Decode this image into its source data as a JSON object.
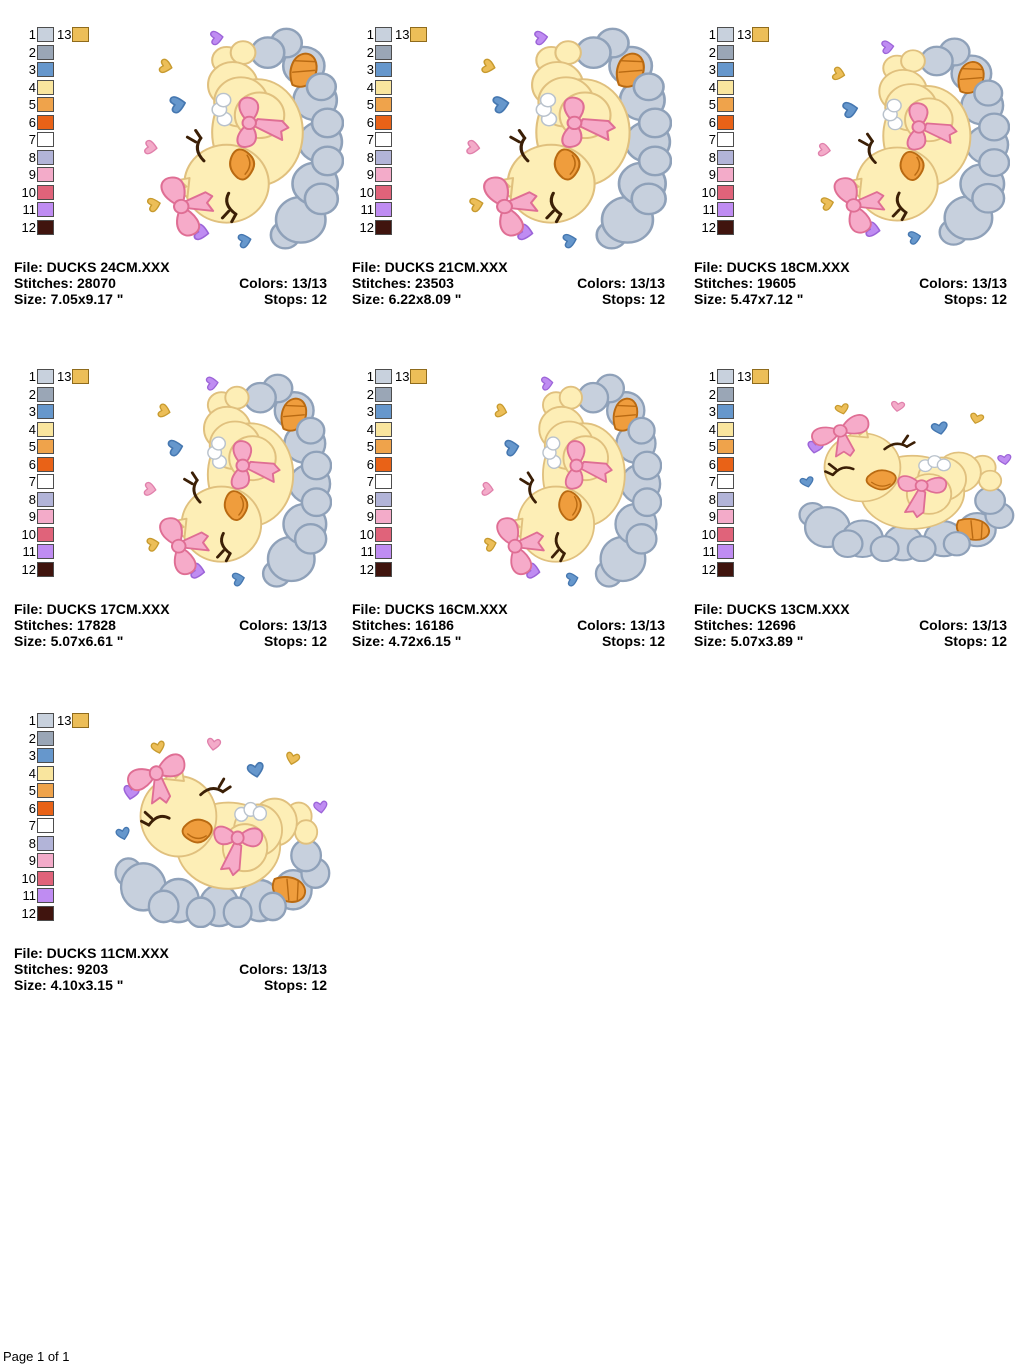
{
  "page": {
    "footer_label": "Page 1 of 1"
  },
  "labels": {
    "file": "File:",
    "stitches": "Stitches:",
    "size": "Size:",
    "colors": "Colors:",
    "stops": "Stops:"
  },
  "palette": {
    "numbers": [
      "1",
      "2",
      "3",
      "4",
      "5",
      "6",
      "7",
      "8",
      "9",
      "10",
      "11",
      "12"
    ],
    "extra_number": "13",
    "colors": {
      "1": "#c8d1dd",
      "2": "#9aa6b6",
      "3": "#6697cc",
      "4": "#f9e59e",
      "5": "#efa34b",
      "6": "#e96217",
      "7": "#ffffff",
      "8": "#b2b4d8",
      "9": "#f3abc9",
      "10": "#e0637a",
      "11": "#bf8cf2",
      "12": "#40140e",
      "13": "#ecbe58"
    }
  },
  "designs": [
    {
      "file": "DUCKS 24CM.XXX",
      "stitches": "28070",
      "size": "7.05x9.17 \"",
      "colors": "13/13",
      "stops": "12"
    },
    {
      "file": "DUCKS 21CM.XXX",
      "stitches": "23503",
      "size": "6.22x8.09 \"",
      "colors": "13/13",
      "stops": "12"
    },
    {
      "file": "DUCKS 18CM.XXX",
      "stitches": "19605",
      "size": "5.47x7.12 \"",
      "colors": "13/13",
      "stops": "12"
    },
    {
      "file": "DUCKS 17CM.XXX",
      "stitches": "17828",
      "size": "5.07x6.61 \"",
      "colors": "13/13",
      "stops": "12"
    },
    {
      "file": "DUCKS 16CM.XXX",
      "stitches": "16186",
      "size": "4.72x6.15 \"",
      "colors": "13/13",
      "stops": "12"
    },
    {
      "file": "DUCKS 13CM.XXX",
      "stitches": "12696",
      "size": "5.07x3.89 \"",
      "colors": "13/13",
      "stops": "12"
    },
    {
      "file": "DUCKS 11CM.XXX",
      "stitches": "9203",
      "size": "4.10x3.15 \"",
      "colors": "13/13",
      "stops": "12"
    }
  ],
  "artwork": {
    "description": "sleeping duckling with pink bows resting on a cloud, surrounded by hearts",
    "colors": {
      "cloud": "#c7d0dd",
      "cloud_outline": "#8fa1b9",
      "duck_body": "#fdeeb6",
      "duck_outline": "#e0c07e",
      "beak": "#ef9d3d",
      "beak_outline": "#b96a12",
      "bow": "#f6abc9",
      "bow_outline": "#df6e94",
      "eye": "#3b1f06",
      "ruffle": "#ffffff",
      "ruffle_outline": "#b9c2cc",
      "heart_gold": "#ecbe58",
      "heart_gold_outline": "#c79a2e",
      "heart_pink": "#f3abc9",
      "heart_pink_outline": "#e080ab",
      "heart_blue": "#6697cc",
      "heart_blue_outline": "#4577b0",
      "heart_purple": "#bf8cf2",
      "heart_purple_outline": "#9c64d8"
    }
  }
}
